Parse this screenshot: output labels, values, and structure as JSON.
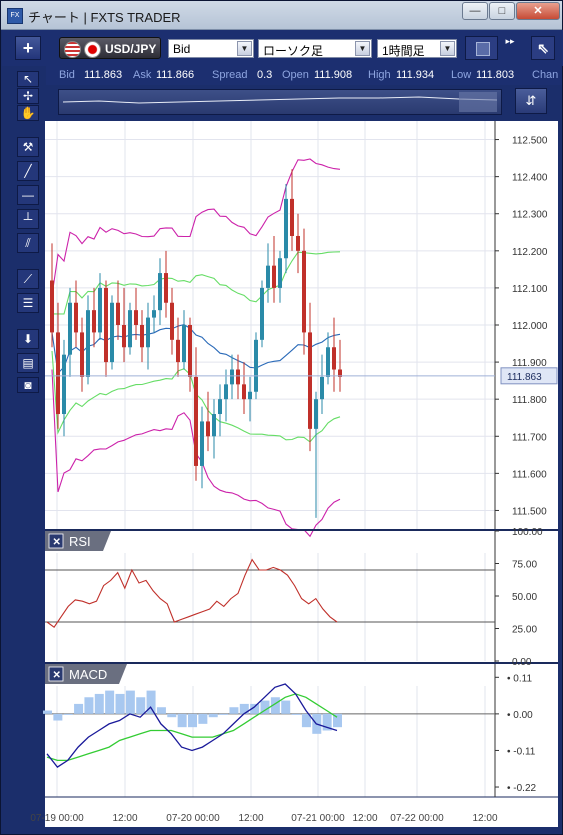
{
  "window": {
    "title": "チャート | FXTS TRADER",
    "app_icon": "FX",
    "minimize": "—",
    "maximize": "□",
    "close": "✕"
  },
  "toolbar": {
    "add_label": "+",
    "symbol": "USD/JPY",
    "price_type": "Bid",
    "chart_type": "ローソク足",
    "timeframe": "1時間足"
  },
  "quote": {
    "bid_label": "Bid",
    "bid": "111.863",
    "ask_label": "Ask",
    "ask": "111.866",
    "spread_label": "Spread",
    "spread": "0.3",
    "open_label": "Open",
    "open": "111.908",
    "high_label": "High",
    "high": "111.934",
    "low_label": "Low",
    "low": "111.803",
    "change_label": "Chan"
  },
  "chart_data": [
    {
      "type": "candlestick",
      "instrument": "USD/JPY",
      "yticks": [
        "112.500",
        "112.400",
        "112.300",
        "112.200",
        "112.100",
        "112.000",
        "111.900",
        "111.800",
        "111.700",
        "111.600",
        "111.500"
      ],
      "ylim": [
        111.45,
        112.55
      ],
      "current_price": "111.863",
      "xticks": [
        "07-19 00:00",
        "12:00",
        "07-20 00:00",
        "12:00",
        "07-21 00:00",
        "12:00",
        "07-22 00:00",
        "12:00"
      ],
      "colors": {
        "up": "#2a8aa8",
        "down": "#c0302a",
        "ma": "#2a6ab8",
        "bb_inner": "#66dd66",
        "bb_outer": "#cc22aa"
      },
      "candles": [
        [
          112.12,
          112.22,
          111.94,
          111.98
        ],
        [
          111.98,
          112.06,
          111.72,
          111.76
        ],
        [
          111.76,
          111.96,
          111.7,
          111.92
        ],
        [
          111.92,
          112.1,
          111.86,
          112.06
        ],
        [
          112.06,
          112.12,
          111.94,
          111.98
        ],
        [
          111.98,
          112.02,
          111.82,
          111.86
        ],
        [
          111.86,
          112.08,
          111.84,
          112.04
        ],
        [
          112.04,
          112.1,
          111.94,
          111.98
        ],
        [
          111.98,
          112.14,
          111.96,
          112.1
        ],
        [
          112.1,
          112.12,
          111.86,
          111.9
        ],
        [
          111.9,
          112.08,
          111.88,
          112.06
        ],
        [
          112.06,
          112.12,
          111.96,
          112.0
        ],
        [
          112.0,
          112.1,
          111.9,
          111.94
        ],
        [
          111.94,
          112.06,
          111.92,
          112.04
        ],
        [
          112.04,
          112.1,
          111.96,
          112.0
        ],
        [
          112.0,
          112.04,
          111.9,
          111.94
        ],
        [
          111.94,
          112.06,
          111.88,
          112.02
        ],
        [
          112.02,
          112.08,
          111.98,
          112.04
        ],
        [
          112.04,
          112.18,
          112.0,
          112.14
        ],
        [
          112.14,
          112.2,
          112.02,
          112.06
        ],
        [
          112.06,
          112.1,
          111.92,
          111.96
        ],
        [
          111.96,
          112.02,
          111.86,
          111.9
        ],
        [
          111.9,
          112.04,
          111.88,
          112.0
        ],
        [
          112.0,
          112.02,
          111.82,
          111.86
        ],
        [
          111.86,
          111.94,
          111.58,
          111.62
        ],
        [
          111.62,
          111.78,
          111.56,
          111.74
        ],
        [
          111.74,
          111.82,
          111.66,
          111.7
        ],
        [
          111.7,
          111.8,
          111.64,
          111.76
        ],
        [
          111.76,
          111.84,
          111.7,
          111.8
        ],
        [
          111.8,
          111.88,
          111.74,
          111.84
        ],
        [
          111.84,
          111.92,
          111.8,
          111.88
        ],
        [
          111.88,
          111.92,
          111.8,
          111.84
        ],
        [
          111.84,
          111.9,
          111.76,
          111.8
        ],
        [
          111.8,
          111.86,
          111.74,
          111.82
        ],
        [
          111.82,
          111.98,
          111.8,
          111.96
        ],
        [
          111.96,
          112.12,
          111.94,
          112.1
        ],
        [
          112.1,
          112.22,
          112.06,
          112.16
        ],
        [
          112.16,
          112.24,
          112.06,
          112.1
        ],
        [
          112.1,
          112.2,
          112.06,
          112.18
        ],
        [
          112.18,
          112.38,
          112.14,
          112.34
        ],
        [
          112.34,
          112.42,
          112.2,
          112.24
        ],
        [
          112.24,
          112.3,
          112.14,
          112.2
        ],
        [
          112.2,
          112.26,
          111.92,
          111.98
        ],
        [
          111.98,
          112.06,
          111.66,
          111.72
        ],
        [
          111.72,
          111.82,
          111.48,
          111.8
        ],
        [
          111.8,
          111.92,
          111.76,
          111.86
        ],
        [
          111.86,
          111.98,
          111.84,
          111.94
        ],
        [
          111.94,
          112.02,
          111.82,
          111.88
        ],
        [
          111.88,
          111.96,
          111.82,
          111.86
        ]
      ]
    },
    {
      "type": "line",
      "name": "RSI",
      "yticks": [
        "100.00",
        "75.00",
        "50.00",
        "25.00",
        "0.00"
      ],
      "ylim": [
        0,
        100
      ],
      "levels": [
        70,
        30
      ],
      "color": "#c0302a",
      "values": [
        30,
        26,
        34,
        42,
        47,
        46,
        44,
        46,
        58,
        62,
        68,
        56,
        70,
        60,
        62,
        54,
        48,
        44,
        30,
        32,
        34,
        36,
        38,
        40,
        46,
        42,
        48,
        52,
        66,
        78,
        70,
        70,
        72,
        70,
        66,
        58,
        48,
        44,
        48,
        40,
        34,
        30
      ]
    },
    {
      "type": "line",
      "name": "MACD",
      "yticks": [
        "0.11",
        "0.00",
        "-0.11",
        "-0.22"
      ],
      "ylim": [
        -0.25,
        0.15
      ],
      "macd_color": "#1a1a9a",
      "signal_color": "#33cc33",
      "histogram_color": "#a8c8f0",
      "macd": [
        -0.12,
        -0.16,
        -0.14,
        -0.1,
        -0.07,
        -0.05,
        -0.03,
        -0.02,
        0.0,
        -0.01,
        0.02,
        -0.03,
        -0.06,
        -0.1,
        -0.11,
        -0.1,
        -0.08,
        -0.06,
        -0.03,
        0.0,
        0.02,
        0.05,
        0.08,
        0.09,
        0.06,
        0.01,
        -0.03,
        -0.04,
        -0.05
      ],
      "signal": [
        -0.13,
        -0.14,
        -0.14,
        -0.13,
        -0.12,
        -0.11,
        -0.1,
        -0.08,
        -0.07,
        -0.06,
        -0.05,
        -0.05,
        -0.05,
        -0.06,
        -0.07,
        -0.07,
        -0.07,
        -0.06,
        -0.05,
        -0.03,
        -0.01,
        0.01,
        0.03,
        0.05,
        0.06,
        0.05,
        0.03,
        0.01,
        -0.01
      ],
      "histogram": [
        0.01,
        -0.02,
        0.0,
        0.03,
        0.05,
        0.06,
        0.07,
        0.06,
        0.07,
        0.05,
        0.07,
        0.02,
        -0.01,
        -0.04,
        -0.04,
        -0.03,
        -0.01,
        0.0,
        0.02,
        0.03,
        0.03,
        0.04,
        0.05,
        0.04,
        0.0,
        -0.04,
        -0.06,
        -0.05,
        -0.04
      ]
    }
  ]
}
